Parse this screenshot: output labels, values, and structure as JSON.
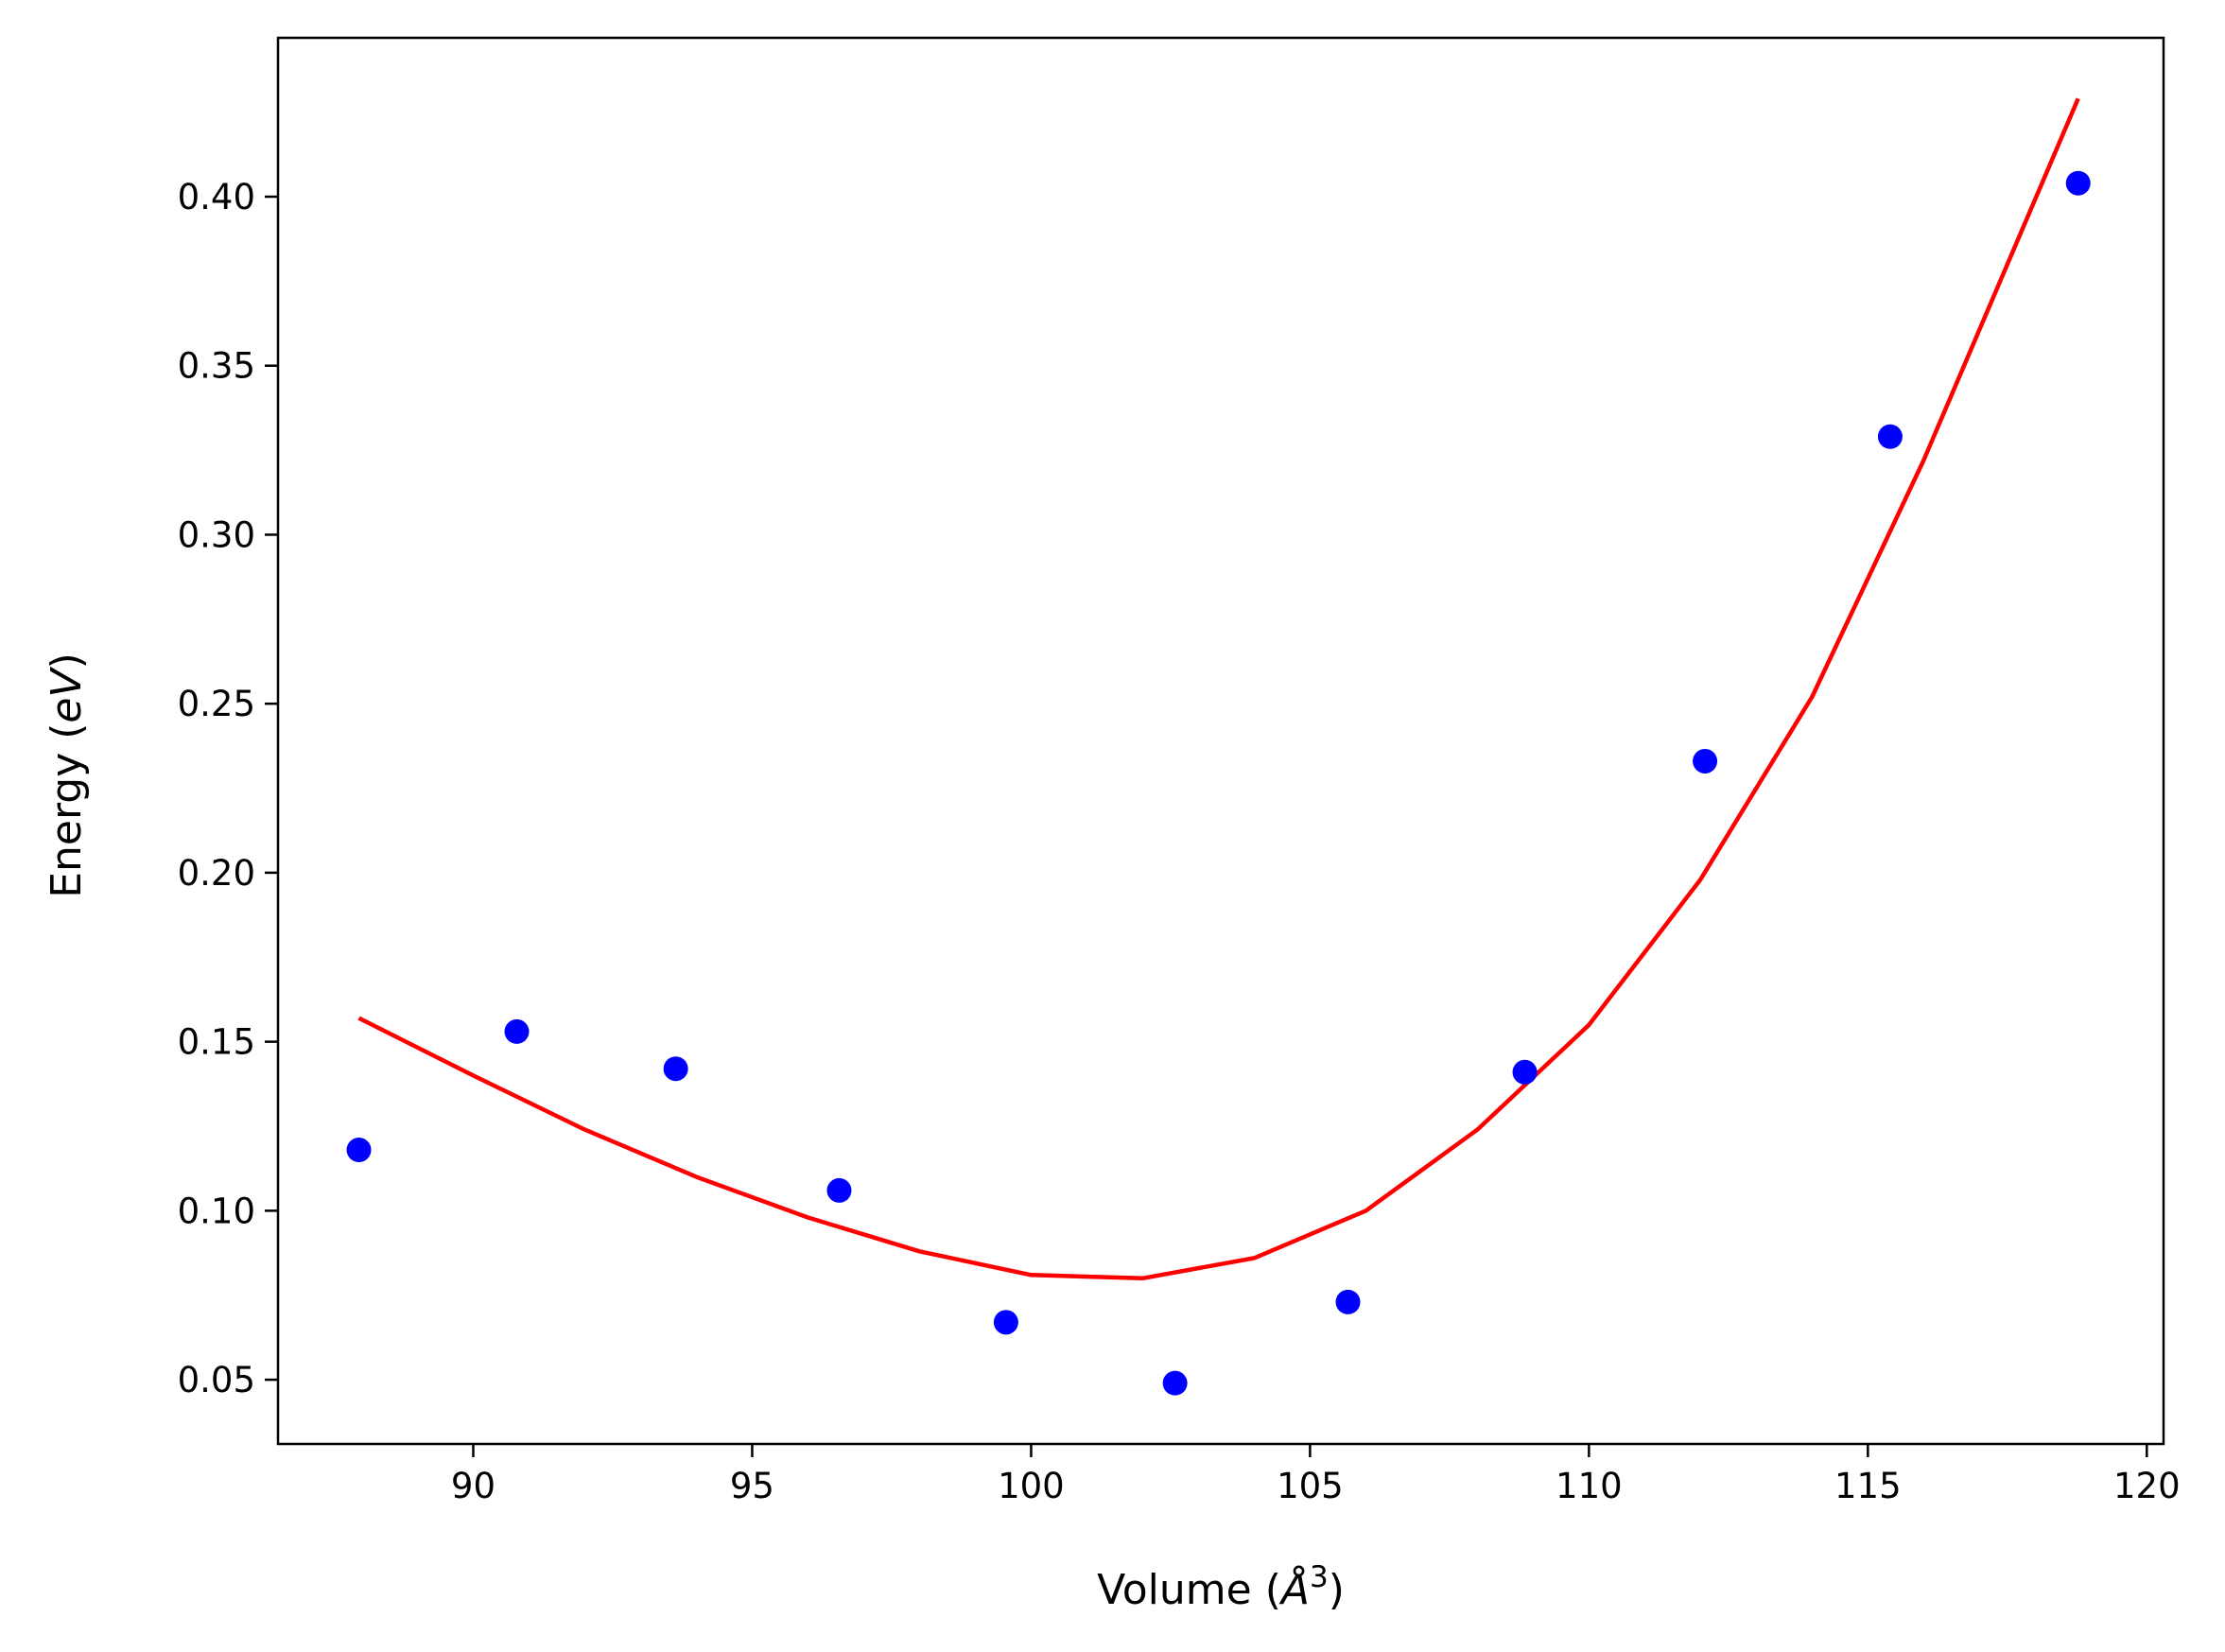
{
  "chart_data": {
    "type": "scatter",
    "title": "",
    "xlabel": "Volume (Å³)",
    "ylabel": "Energy (eV)",
    "xlabel_parts": {
      "prefix": "Volume (",
      "symbol": "Å",
      "sup": "3",
      "suffix": ")"
    },
    "ylabel_parts": {
      "prefix": "Energy (",
      "symbol": "eV",
      "suffix": ")"
    },
    "xlim": [
      86.5,
      120.3
    ],
    "ylim": [
      0.031,
      0.447
    ],
    "xticks": [
      90,
      95,
      100,
      105,
      110,
      115,
      120
    ],
    "xtick_labels": [
      "90",
      "95",
      "100",
      "105",
      "110",
      "115",
      "120"
    ],
    "yticks": [
      0.05,
      0.1,
      0.15,
      0.2,
      0.25,
      0.3,
      0.35,
      0.4
    ],
    "ytick_labels": [
      "0.05",
      "0.10",
      "0.15",
      "0.20",
      "0.25",
      "0.30",
      "0.35",
      "0.40"
    ],
    "grid": false,
    "series": [
      {
        "kind": "points",
        "color": "#0000ff",
        "x": [
          87.95,
          90.78,
          93.63,
          96.56,
          99.55,
          102.58,
          105.68,
          108.85,
          112.08,
          115.4,
          118.77
        ],
        "y": [
          0.118,
          0.153,
          0.142,
          0.106,
          0.067,
          0.049,
          0.073,
          0.141,
          0.233,
          0.329,
          0.404
        ]
      },
      {
        "kind": "fit-line",
        "color": "#ff0000",
        "x": [
          87.95,
          90.0,
          92.0,
          94.0,
          96.0,
          98.0,
          100.0,
          102.0,
          104.0,
          106.0,
          108.0,
          110.0,
          112.0,
          114.0,
          116.0,
          118.77
        ],
        "y": [
          0.157,
          0.14,
          0.124,
          0.11,
          0.098,
          0.088,
          0.081,
          0.08,
          0.086,
          0.1,
          0.124,
          0.155,
          0.198,
          0.252,
          0.322,
          0.429
        ]
      }
    ]
  }
}
